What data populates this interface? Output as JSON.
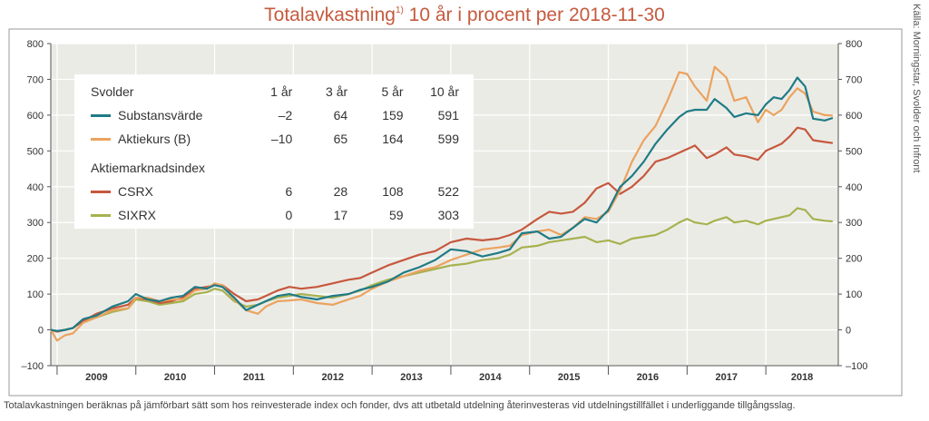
{
  "title": {
    "main": "Totalavkastning",
    "sup": "1)",
    "rest": " 10 år i procent per 2018-11-30"
  },
  "source": "Källa: Morningstar, Svolder och Infront",
  "footnote": "Totalavkastningen beräknas på jämförbart sätt som hos reinvesterade index och fonder, dvs att utbetald utdelning återinvesteras vid utdelningstillfället i underliggande tillgångsslag.",
  "colors": {
    "plot_bg": "#ebebe6",
    "grid": "#ffffff",
    "substans": "#1f7b86",
    "aktiekurs": "#eba35f",
    "csrx": "#c6583e",
    "sixrx": "#a6b24f"
  },
  "legend": {
    "group1_title": "Svolder",
    "headers": [
      "1 år",
      "3 år",
      "5 år",
      "10 år"
    ],
    "group2_title": "Aktiemarknadsindex",
    "rows": [
      {
        "name": "Substansvärde",
        "values": [
          "–2",
          "64",
          "159",
          "591"
        ]
      },
      {
        "name": "Aktiekurs (B)",
        "values": [
          "–10",
          "65",
          "164",
          "599"
        ]
      },
      {
        "name": "CSRX",
        "values": [
          "6",
          "28",
          "108",
          "522"
        ]
      },
      {
        "name": "SIXRX",
        "values": [
          "0",
          "17",
          "59",
          "303"
        ]
      }
    ]
  },
  "chart_data": {
    "type": "line",
    "x_unit": "year (decimal)",
    "xlim": [
      2008.92,
      2018.92
    ],
    "ylim": [
      -100,
      800
    ],
    "yticks": [
      -100,
      0,
      100,
      200,
      300,
      400,
      500,
      600,
      700,
      800
    ],
    "yticklabels": [
      "–100",
      "0",
      "100",
      "200",
      "300",
      "400",
      "500",
      "600",
      "700",
      "800"
    ],
    "year_labels": [
      "2009",
      "2010",
      "2011",
      "2012",
      "2013",
      "2014",
      "2015",
      "2016",
      "2017",
      "2018"
    ],
    "grid": true,
    "legend_position": "top-left",
    "x": [
      2008.92,
      2009.0,
      2009.1,
      2009.2,
      2009.33,
      2009.5,
      2009.7,
      2009.9,
      2010.0,
      2010.15,
      2010.3,
      2010.45,
      2010.6,
      2010.75,
      2010.9,
      2011.0,
      2011.1,
      2011.25,
      2011.4,
      2011.55,
      2011.65,
      2011.8,
      2011.95,
      2012.1,
      2012.3,
      2012.5,
      2012.7,
      2012.85,
      2013.0,
      2013.2,
      2013.4,
      2013.6,
      2013.8,
      2014.0,
      2014.2,
      2014.4,
      2014.6,
      2014.75,
      2014.9,
      2015.1,
      2015.25,
      2015.4,
      2015.55,
      2015.7,
      2015.85,
      2016.0,
      2016.15,
      2016.3,
      2016.45,
      2016.6,
      2016.75,
      2016.9,
      2017.0,
      2017.1,
      2017.25,
      2017.35,
      2017.5,
      2017.6,
      2017.75,
      2017.9,
      2018.0,
      2018.1,
      2018.2,
      2018.3,
      2018.4,
      2018.5,
      2018.6,
      2018.75,
      2018.85
    ],
    "series": [
      {
        "name": "Substansvärde",
        "values": [
          0,
          -3,
          0,
          5,
          30,
          40,
          65,
          80,
          100,
          85,
          80,
          90,
          95,
          120,
          115,
          125,
          120,
          90,
          55,
          70,
          80,
          95,
          100,
          92,
          85,
          95,
          100,
          112,
          120,
          135,
          160,
          175,
          195,
          225,
          220,
          205,
          215,
          225,
          270,
          275,
          255,
          260,
          285,
          310,
          300,
          335,
          400,
          430,
          470,
          520,
          560,
          595,
          610,
          615,
          615,
          645,
          620,
          595,
          605,
          600,
          630,
          650,
          645,
          670,
          705,
          680,
          590,
          585,
          592
        ]
      },
      {
        "name": "Aktiekurs (B)",
        "values": [
          0,
          -30,
          -15,
          -10,
          20,
          35,
          55,
          60,
          90,
          90,
          80,
          85,
          85,
          110,
          115,
          130,
          125,
          85,
          55,
          45,
          65,
          80,
          82,
          85,
          75,
          70,
          85,
          95,
          115,
          135,
          150,
          165,
          175,
          195,
          210,
          225,
          230,
          235,
          265,
          275,
          280,
          265,
          285,
          315,
          310,
          330,
          390,
          470,
          530,
          570,
          640,
          720,
          715,
          680,
          640,
          735,
          705,
          640,
          650,
          580,
          615,
          600,
          615,
          650,
          675,
          660,
          610,
          600,
          599
        ]
      },
      {
        "name": "CSRX",
        "values": [
          0,
          -5,
          0,
          5,
          25,
          45,
          60,
          70,
          90,
          85,
          75,
          80,
          90,
          115,
          120,
          125,
          125,
          100,
          80,
          85,
          95,
          110,
          120,
          115,
          120,
          130,
          140,
          145,
          160,
          180,
          195,
          210,
          220,
          245,
          255,
          250,
          255,
          265,
          280,
          310,
          330,
          325,
          330,
          355,
          395,
          410,
          380,
          400,
          430,
          470,
          480,
          495,
          505,
          515,
          480,
          490,
          510,
          490,
          485,
          475,
          500,
          510,
          520,
          540,
          565,
          560,
          530,
          525,
          522
        ]
      },
      {
        "name": "SIXRX",
        "values": [
          0,
          -5,
          0,
          5,
          25,
          35,
          50,
          60,
          85,
          80,
          70,
          75,
          80,
          100,
          105,
          115,
          110,
          80,
          65,
          70,
          80,
          90,
          95,
          100,
          95,
          90,
          100,
          110,
          125,
          140,
          150,
          160,
          170,
          180,
          185,
          195,
          200,
          210,
          230,
          235,
          245,
          250,
          255,
          260,
          245,
          250,
          240,
          255,
          260,
          265,
          280,
          300,
          310,
          300,
          295,
          305,
          315,
          300,
          305,
          295,
          305,
          310,
          315,
          320,
          340,
          335,
          310,
          305,
          303
        ]
      }
    ]
  }
}
